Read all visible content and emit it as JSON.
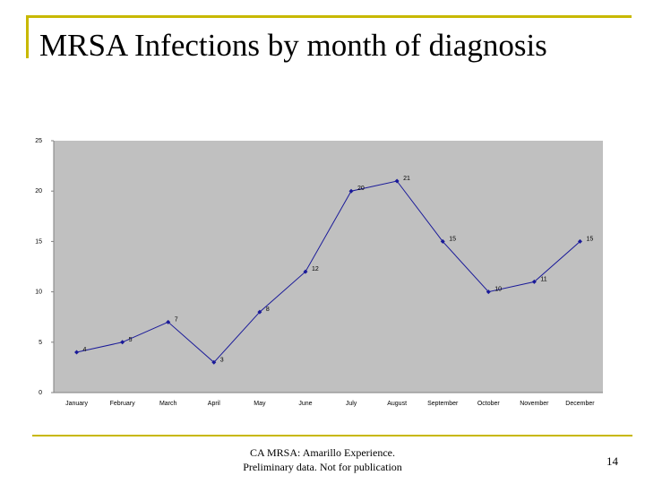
{
  "slide": {
    "title": "MRSA Infections by month of diagnosis",
    "footer": {
      "line1": "CA MRSA: Amarillo Experience.",
      "line2": "Preliminary data. Not for publication"
    },
    "page_number": "14"
  },
  "colors": {
    "accent": "#c8b800",
    "plot_background": "#c0c0c0",
    "series_line": "#1a1a99"
  },
  "chart_data": {
    "type": "line",
    "title": "",
    "xlabel": "",
    "ylabel": "",
    "categories": [
      "January",
      "February",
      "March",
      "April",
      "May",
      "June",
      "July",
      "August",
      "September",
      "October",
      "November",
      "December"
    ],
    "series": [
      {
        "values": [
          4,
          5,
          7,
          3,
          8,
          12,
          20,
          21,
          15,
          10,
          11,
          15
        ]
      }
    ],
    "data_labels": [
      "4",
      "5",
      "7",
      "3",
      "8",
      "12",
      "20",
      "21",
      "15",
      "10",
      "11",
      "15"
    ],
    "ylim": [
      0,
      25
    ],
    "yticks": [
      0,
      5,
      10,
      15,
      20,
      25
    ],
    "grid": false,
    "legend": "none"
  }
}
